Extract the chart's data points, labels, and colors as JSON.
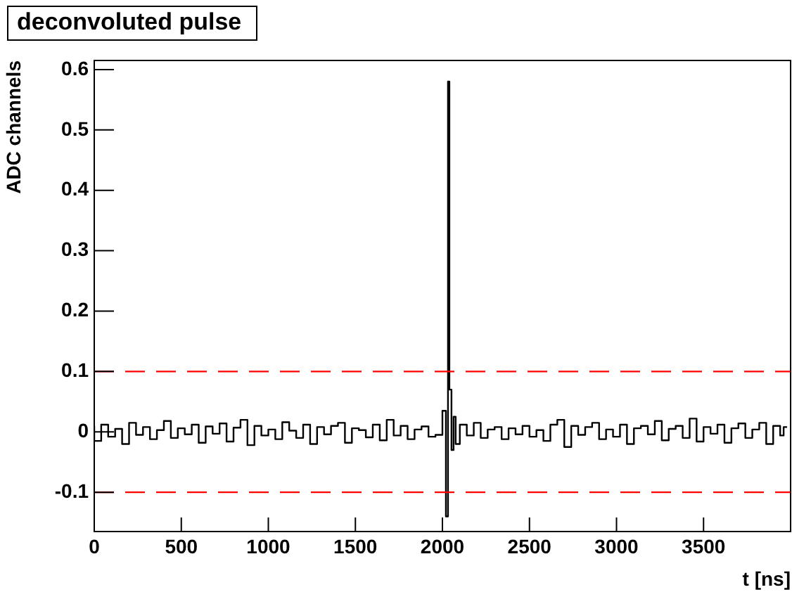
{
  "chart_data": {
    "type": "step",
    "title": "deconvoluted pulse",
    "xlabel": "t [ns]",
    "ylabel": "ADC channels",
    "color": "#000000",
    "x": [
      0,
      40,
      80,
      120,
      160,
      200,
      240,
      280,
      320,
      360,
      400,
      440,
      480,
      520,
      560,
      600,
      640,
      680,
      720,
      760,
      800,
      840,
      880,
      920,
      960,
      1000,
      1040,
      1080,
      1120,
      1160,
      1200,
      1240,
      1280,
      1320,
      1360,
      1400,
      1440,
      1480,
      1520,
      1560,
      1600,
      1640,
      1680,
      1720,
      1760,
      1800,
      1840,
      1880,
      1920,
      1960,
      2000,
      2020,
      2032,
      2040,
      2052,
      2064,
      2076,
      2100,
      2140,
      2180,
      2220,
      2260,
      2300,
      2340,
      2380,
      2420,
      2460,
      2500,
      2540,
      2580,
      2620,
      2660,
      2700,
      2740,
      2780,
      2820,
      2860,
      2900,
      2940,
      2980,
      3020,
      3060,
      3100,
      3140,
      3180,
      3220,
      3260,
      3300,
      3340,
      3380,
      3420,
      3460,
      3500,
      3540,
      3580,
      3620,
      3660,
      3700,
      3740,
      3780,
      3820,
      3860,
      3900,
      3940,
      3960,
      3980
    ],
    "values": [
      0.01,
      -0.015,
      0.012,
      -0.008,
      0.005,
      -0.02,
      0.015,
      -0.005,
      0.008,
      -0.012,
      0.003,
      0.018,
      -0.01,
      0.006,
      -0.004,
      0.012,
      -0.018,
      0.009,
      -0.003,
      0.014,
      -0.016,
      0.007,
      0.02,
      -0.022,
      0.01,
      -0.006,
      0.004,
      -0.012,
      0.016,
      0.002,
      -0.01,
      0.012,
      -0.02,
      0.008,
      -0.004,
      0.01,
      0.015,
      -0.018,
      0.006,
      0.003,
      -0.009,
      0.012,
      -0.014,
      0.02,
      -0.006,
      0.01,
      -0.012,
      0.004,
      0.009,
      -0.008,
      -0.005,
      0.035,
      -0.14,
      0.58,
      0.07,
      -0.03,
      0.025,
      -0.02,
      0.012,
      -0.006,
      0.015,
      -0.01,
      0.004,
      0.008,
      -0.012,
      0.006,
      -0.004,
      0.01,
      -0.008,
      0.003,
      -0.015,
      0.012,
      0.02,
      -0.025,
      0.01,
      -0.005,
      0.008,
      0.015,
      -0.012,
      0.004,
      -0.008,
      0.012,
      -0.02,
      0.006,
      0.01,
      -0.004,
      0.018,
      -0.014,
      0.005,
      0.01,
      -0.01,
      0.022,
      -0.016,
      0.008,
      -0.003,
      0.012,
      -0.018,
      0.006,
      0.014,
      -0.01,
      0.004,
      0.015,
      -0.02,
      0.01,
      -0.006,
      0.008
    ],
    "xlim": [
      0,
      4000
    ],
    "ylim": [
      -0.165,
      0.615
    ],
    "xticks": [
      0,
      500,
      1000,
      1500,
      2000,
      2500,
      3000,
      3500
    ],
    "yticks": [
      -0.1,
      0,
      0.1,
      0.2,
      0.3,
      0.4,
      0.5,
      0.6
    ],
    "ref_lines": [
      {
        "axis": "y",
        "value": 0.1,
        "color": "#ff0000",
        "line_style": "dashed"
      },
      {
        "axis": "y",
        "value": -0.1,
        "color": "#ff0000",
        "line_style": "dashed"
      }
    ]
  }
}
